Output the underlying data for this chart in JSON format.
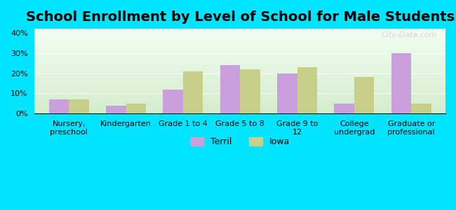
{
  "title": "School Enrollment by Level of School for Male Students",
  "categories": [
    "Nursery,\npreschool",
    "Kindergarten",
    "Grade 1 to 4",
    "Grade 5 to 8",
    "Grade 9 to\n12",
    "College\nundergrad",
    "Graduate or\nprofessional"
  ],
  "terril_values": [
    7,
    4,
    12,
    24,
    20,
    5,
    30
  ],
  "iowa_values": [
    7,
    5,
    21,
    22,
    23,
    18,
    5
  ],
  "terril_color": "#c9a0dc",
  "iowa_color": "#c8cf8a",
  "figure_bg": "#00e5ff",
  "plot_bg_top": "#d4edcc",
  "plot_bg_bottom": "#f2fef2",
  "ylim": [
    0,
    42
  ],
  "yticks": [
    0,
    10,
    20,
    30,
    40
  ],
  "ytick_labels": [
    "0%",
    "10%",
    "20%",
    "30%",
    "40%"
  ],
  "title_fontsize": 14,
  "tick_fontsize": 8,
  "legend_labels": [
    "Terril",
    "Iowa"
  ],
  "bar_width": 0.35,
  "watermark": "City-Data.com"
}
